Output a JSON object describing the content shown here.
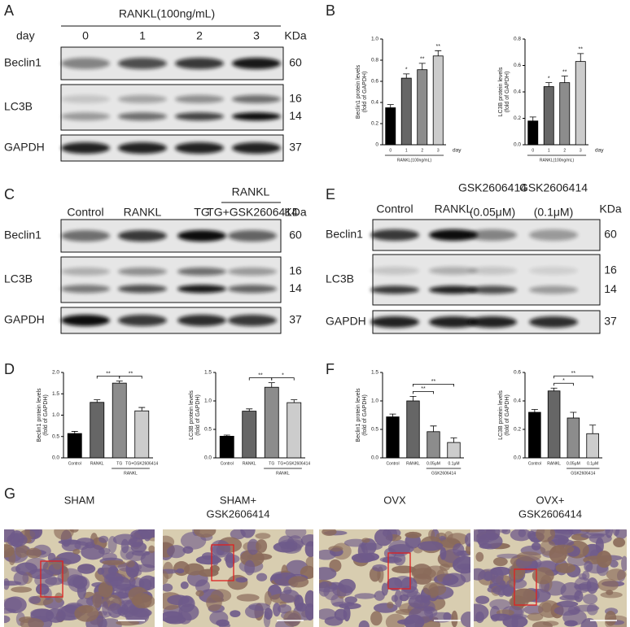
{
  "panel_labels": [
    "A",
    "B",
    "C",
    "D",
    "E",
    "F",
    "G"
  ],
  "blot_a": {
    "header": "RANKL(100ng/mL)",
    "lane_title": "day",
    "lanes": [
      "0",
      "1",
      "2",
      "3"
    ],
    "unit": "KDa",
    "rows": [
      "Beclin1",
      "LC3B",
      "GAPDH"
    ],
    "kda": [
      "60",
      "16",
      "14",
      "37"
    ]
  },
  "blot_c": {
    "header": "RANKL",
    "lanes": [
      "Control",
      "RANKL",
      "TG",
      "TG+GSK2606414"
    ],
    "unit": "KDa",
    "rows": [
      "Beclin1",
      "LC3B",
      "GAPDH"
    ],
    "kda": [
      "60",
      "16",
      "14",
      "37"
    ]
  },
  "blot_e": {
    "lanes": [
      "Control",
      "RANKL",
      "GSK2606414",
      "GSK2606414"
    ],
    "lane_notes": [
      "(0.05μM)",
      "(0.1μM)"
    ],
    "unit": "KDa",
    "rows": [
      "Beclin1",
      "LC3B",
      "GAPDH"
    ],
    "kda": [
      "60",
      "16",
      "14",
      "37"
    ]
  },
  "chart_data": [
    {
      "type": "bar",
      "ylabel": [
        "Beclin1 protein levels",
        "(fold of GAPDH)"
      ],
      "categories": [
        "0",
        "1",
        "2",
        "3"
      ],
      "x_unit": "day",
      "group": {
        "label": "RANKL(100ng/mL)",
        "members": [
          "0",
          "1",
          "2",
          "3"
        ]
      },
      "values": [
        0.35,
        0.63,
        0.71,
        0.84
      ],
      "errors": [
        0.03,
        0.04,
        0.06,
        0.05
      ],
      "stars": [
        null,
        "*",
        "**",
        "**"
      ],
      "colors": [
        "#000000",
        "#666666",
        "#8c8c8c",
        "#cccccc"
      ],
      "ylim": [
        0,
        1.0
      ],
      "yticks": [
        0,
        0.2,
        0.4,
        0.6,
        0.8,
        {
          "value": 1.0,
          "label": "1.0"
        }
      ]
    },
    {
      "type": "bar",
      "ylabel": [
        "LC3B protein levels",
        "(fold of GAPDH)"
      ],
      "categories": [
        "0",
        "1",
        "2",
        "3"
      ],
      "x_unit": "day",
      "group": {
        "label": "RANKL(100ng/mL)",
        "members": [
          "0",
          "1",
          "2",
          "3"
        ]
      },
      "values": [
        0.18,
        0.44,
        0.47,
        0.63
      ],
      "errors": [
        0.03,
        0.03,
        0.05,
        0.06
      ],
      "stars": [
        null,
        "*",
        "**",
        "**"
      ],
      "colors": [
        "#000000",
        "#666666",
        "#8c8c8c",
        "#cccccc"
      ],
      "ylim": [
        0,
        0.8
      ],
      "yticks": [
        {
          "value": 0,
          "label": "0.0"
        },
        0.2,
        0.4,
        0.6,
        0.8
      ]
    },
    {
      "type": "bar",
      "ylabel": [
        "Beclin1 protein levels",
        "(fold of GAPDH)"
      ],
      "categories": [
        "Control",
        "RANKL",
        "TG",
        "TG+GSK2606414"
      ],
      "group": {
        "label": "RANKL",
        "members": [
          "TG",
          "TG+GSK2606414"
        ]
      },
      "values": [
        0.57,
        1.3,
        1.75,
        1.1
      ],
      "errors": [
        0.05,
        0.06,
        0.05,
        0.08
      ],
      "comparisons": [
        {
          "label": "**",
          "between": [
            "RANKL",
            "TG"
          ]
        },
        {
          "label": "**",
          "between": [
            "TG",
            "TG+GSK2606414"
          ]
        }
      ],
      "colors": [
        "#000000",
        "#666666",
        "#8c8c8c",
        "#cccccc"
      ],
      "ylim": [
        0,
        2.0
      ],
      "yticks": [
        {
          "value": 0,
          "label": "0.0"
        },
        0.5,
        {
          "value": 1.0,
          "label": "1.0"
        },
        1.5,
        {
          "value": 2.0,
          "label": "2.0"
        }
      ]
    },
    {
      "type": "bar",
      "ylabel": [
        "LC3B protein levels",
        "(fold of GAPDH)"
      ],
      "categories": [
        "Control",
        "RANKL",
        "TG",
        "TG+GSK2606414"
      ],
      "group": {
        "label": "RANKL",
        "members": [
          "TG",
          "TG+GSK2606414"
        ]
      },
      "values": [
        0.38,
        0.82,
        1.24,
        0.97
      ],
      "errors": [
        0.02,
        0.04,
        0.08,
        0.05
      ],
      "comparisons": [
        {
          "label": "**",
          "between": [
            "RANKL",
            "TG"
          ]
        },
        {
          "label": "*",
          "between": [
            "TG",
            "TG+GSK2606414"
          ]
        }
      ],
      "colors": [
        "#000000",
        "#666666",
        "#8c8c8c",
        "#cccccc"
      ],
      "ylim": [
        0,
        1.5
      ],
      "yticks": [
        {
          "value": 0,
          "label": "0.0"
        },
        0.5,
        {
          "value": 1.0,
          "label": "1.0"
        },
        1.5
      ]
    },
    {
      "type": "bar",
      "ylabel": [
        "Beclin1 protein levels",
        "(fold of GAPDH)"
      ],
      "categories": [
        "Control",
        "RANKL",
        "0.05μM",
        "0.1μM"
      ],
      "group": {
        "label": "GSK2606414",
        "members": [
          "0.05μM",
          "0.1μM"
        ]
      },
      "values": [
        0.72,
        1.0,
        0.46,
        0.27
      ],
      "errors": [
        0.05,
        0.08,
        0.1,
        0.08
      ],
      "comparisons": [
        {
          "label": "**",
          "between": [
            "RANKL",
            "0.05μM"
          ]
        },
        {
          "label": "**",
          "between": [
            "RANKL",
            "0.1μM"
          ]
        }
      ],
      "colors": [
        "#000000",
        "#666666",
        "#8c8c8c",
        "#cccccc"
      ],
      "ylim": [
        0,
        1.5
      ],
      "yticks": [
        {
          "value": 0,
          "label": "0.0"
        },
        0.5,
        {
          "value": 1.0,
          "label": "1.0"
        },
        1.5
      ]
    },
    {
      "type": "bar",
      "ylabel": [
        "LC3B protein levels",
        "(fold of GAPDH)"
      ],
      "categories": [
        "Control",
        "RANKL",
        "0.05μM",
        "0.1μM"
      ],
      "group": {
        "label": "GSK2606414",
        "members": [
          "0.05μM",
          "0.1μM"
        ]
      },
      "values": [
        0.32,
        0.47,
        0.28,
        0.17
      ],
      "errors": [
        0.02,
        0.02,
        0.04,
        0.06
      ],
      "comparisons": [
        {
          "label": "*",
          "between": [
            "RANKL",
            "0.05μM"
          ]
        },
        {
          "label": "**",
          "between": [
            "RANKL",
            "0.1μM"
          ]
        }
      ],
      "colors": [
        "#000000",
        "#666666",
        "#8c8c8c",
        "#cccccc"
      ],
      "ylim": [
        0,
        0.6
      ],
      "yticks": [
        {
          "value": 0,
          "label": "0.0"
        },
        0.2,
        0.4,
        0.6
      ]
    }
  ],
  "histology": {
    "titles": [
      [
        "SHAM"
      ],
      [
        "SHAM+",
        "GSK2606414"
      ],
      [
        "OVX"
      ],
      [
        "OVX+",
        "GSK2606414"
      ]
    ]
  }
}
